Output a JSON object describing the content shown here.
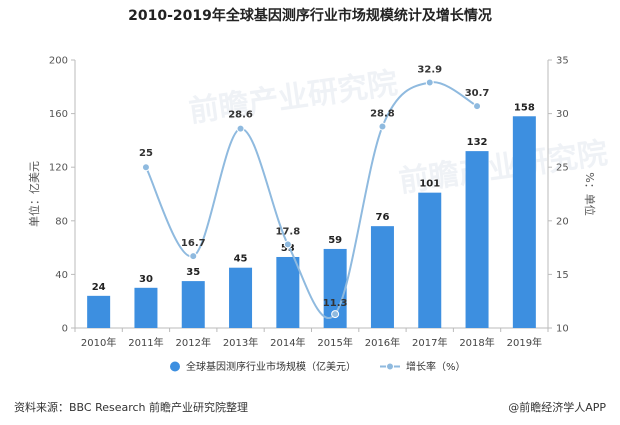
{
  "title": "2010-2019年全球基因测序行业市场规模统计及增长情况",
  "chart_data": {
    "type": "bar",
    "categories": [
      "2010年",
      "2011年",
      "2012年",
      "2013年",
      "2014年",
      "2015年",
      "2016年",
      "2017年",
      "2018年",
      "2019年"
    ],
    "series": [
      {
        "name": "全球基因测序行业市场规模（亿美元）",
        "type": "bar",
        "axis": "left",
        "color": "#3d8fe0",
        "values": [
          24,
          30,
          35,
          45,
          53,
          59,
          76,
          101,
          132,
          158
        ]
      },
      {
        "name": "增长率（%）",
        "type": "line",
        "axis": "right",
        "color": "#8fbadf",
        "values": [
          null,
          25,
          16.7,
          28.6,
          17.8,
          11.3,
          28.8,
          32.9,
          30.7,
          null
        ]
      }
    ],
    "ylabel_left": "单位：亿美元",
    "ylabel_right": "%：单位",
    "ylim_left": [
      0,
      200
    ],
    "yticks_left": [
      0,
      40,
      80,
      120,
      160,
      200
    ],
    "ylim_right": [
      10,
      35
    ],
    "yticks_right": [
      10,
      15,
      20,
      25,
      30,
      35
    ],
    "grid": false,
    "legend": "bottom-center"
  },
  "footer": {
    "source": "资料来源：BBC Research 前瞻产业研究院整理",
    "brand": "@前瞻经济学人APP"
  },
  "watermark": {
    "text": "前瞻产业研究院"
  }
}
